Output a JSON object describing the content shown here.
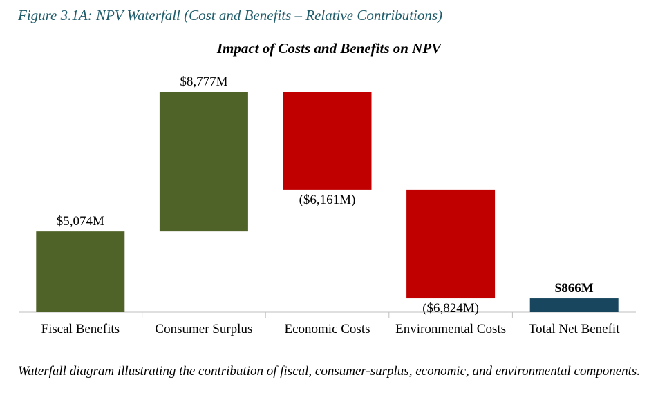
{
  "figure_title": "Figure 3.1A: NPV Waterfall (Cost and Benefits – Relative Contributions)",
  "chart_data": {
    "type": "waterfall",
    "title": "Impact of Costs and Benefits on NPV",
    "categories": [
      "Fiscal Benefits",
      "Consumer Surplus",
      "Economic Costs",
      "Environmental Costs",
      "Total Net Benefit"
    ],
    "values": [
      5074,
      8777,
      -6161,
      -6824,
      866
    ],
    "value_labels": [
      "$5,074M",
      "$8,777M",
      "($6,161M)",
      "($6,824M)",
      "$866M"
    ],
    "increase_color": "#4f6228",
    "decrease_color": "#c00000",
    "total_color": "#17465e"
  },
  "caption": "Waterfall diagram illustrating the contribution of fiscal, consumer-surplus, economic, and environmental components."
}
